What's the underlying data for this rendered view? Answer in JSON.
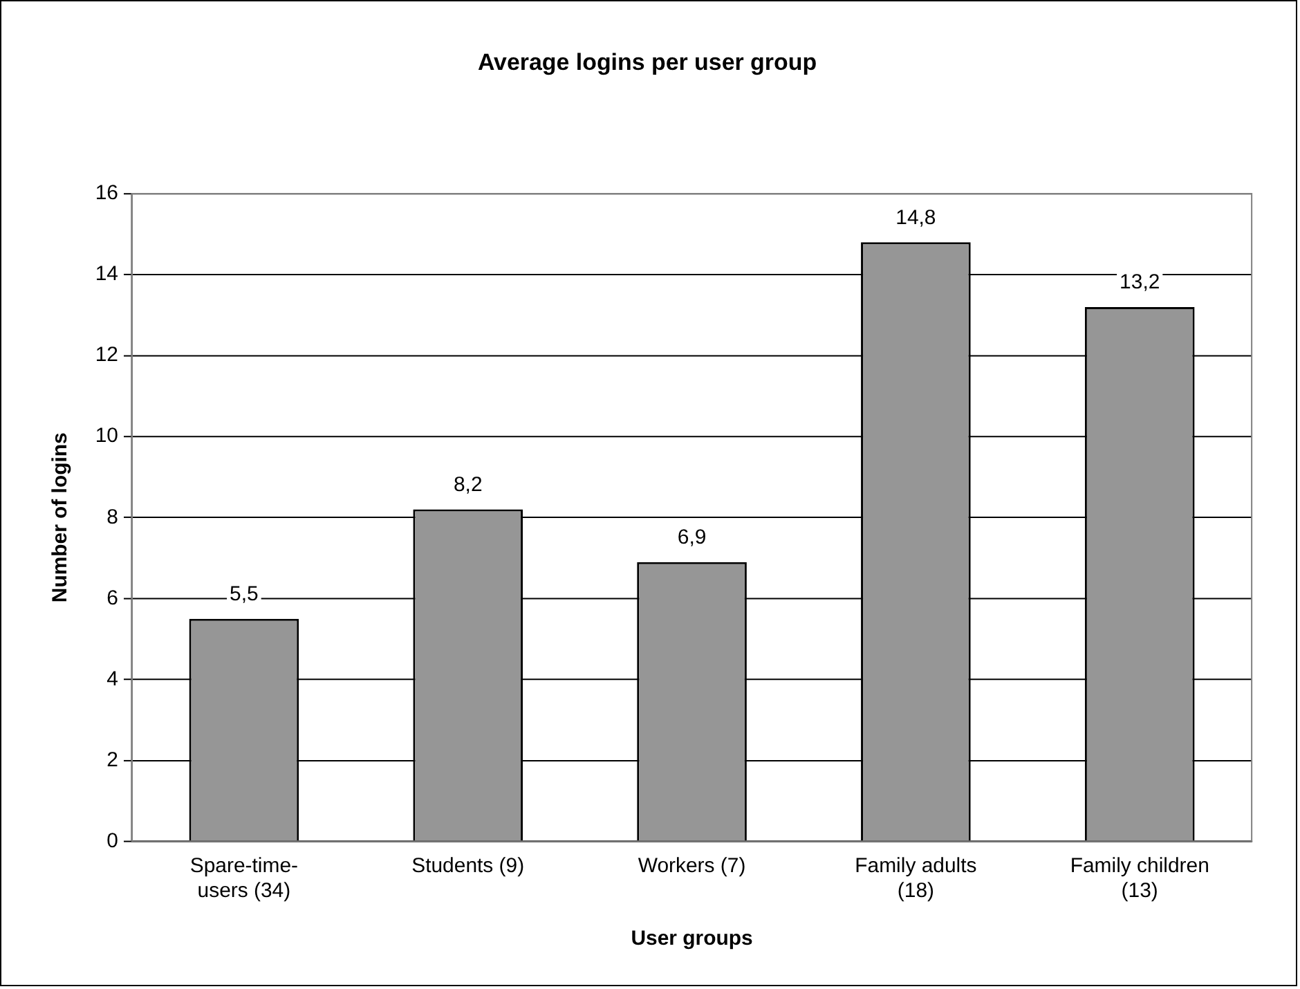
{
  "chart_data": {
    "type": "bar",
    "title": "Average logins per user group",
    "xlabel": "User groups",
    "ylabel": "Number of logins",
    "categories": [
      "Spare-time-users (34)",
      "Students (9)",
      "Workers (7)",
      "Family adults (18)",
      "Family children (13)"
    ],
    "values": [
      5.5,
      8.2,
      6.9,
      14.8,
      13.2
    ],
    "value_labels": [
      "5,5",
      "8,2",
      "6,9",
      "14,8",
      "13,2"
    ],
    "color": "#969696",
    "ylim": [
      0,
      16
    ],
    "yticks": [
      0,
      2,
      4,
      6,
      8,
      10,
      12,
      14,
      16
    ],
    "grid": "y",
    "legend": false
  }
}
